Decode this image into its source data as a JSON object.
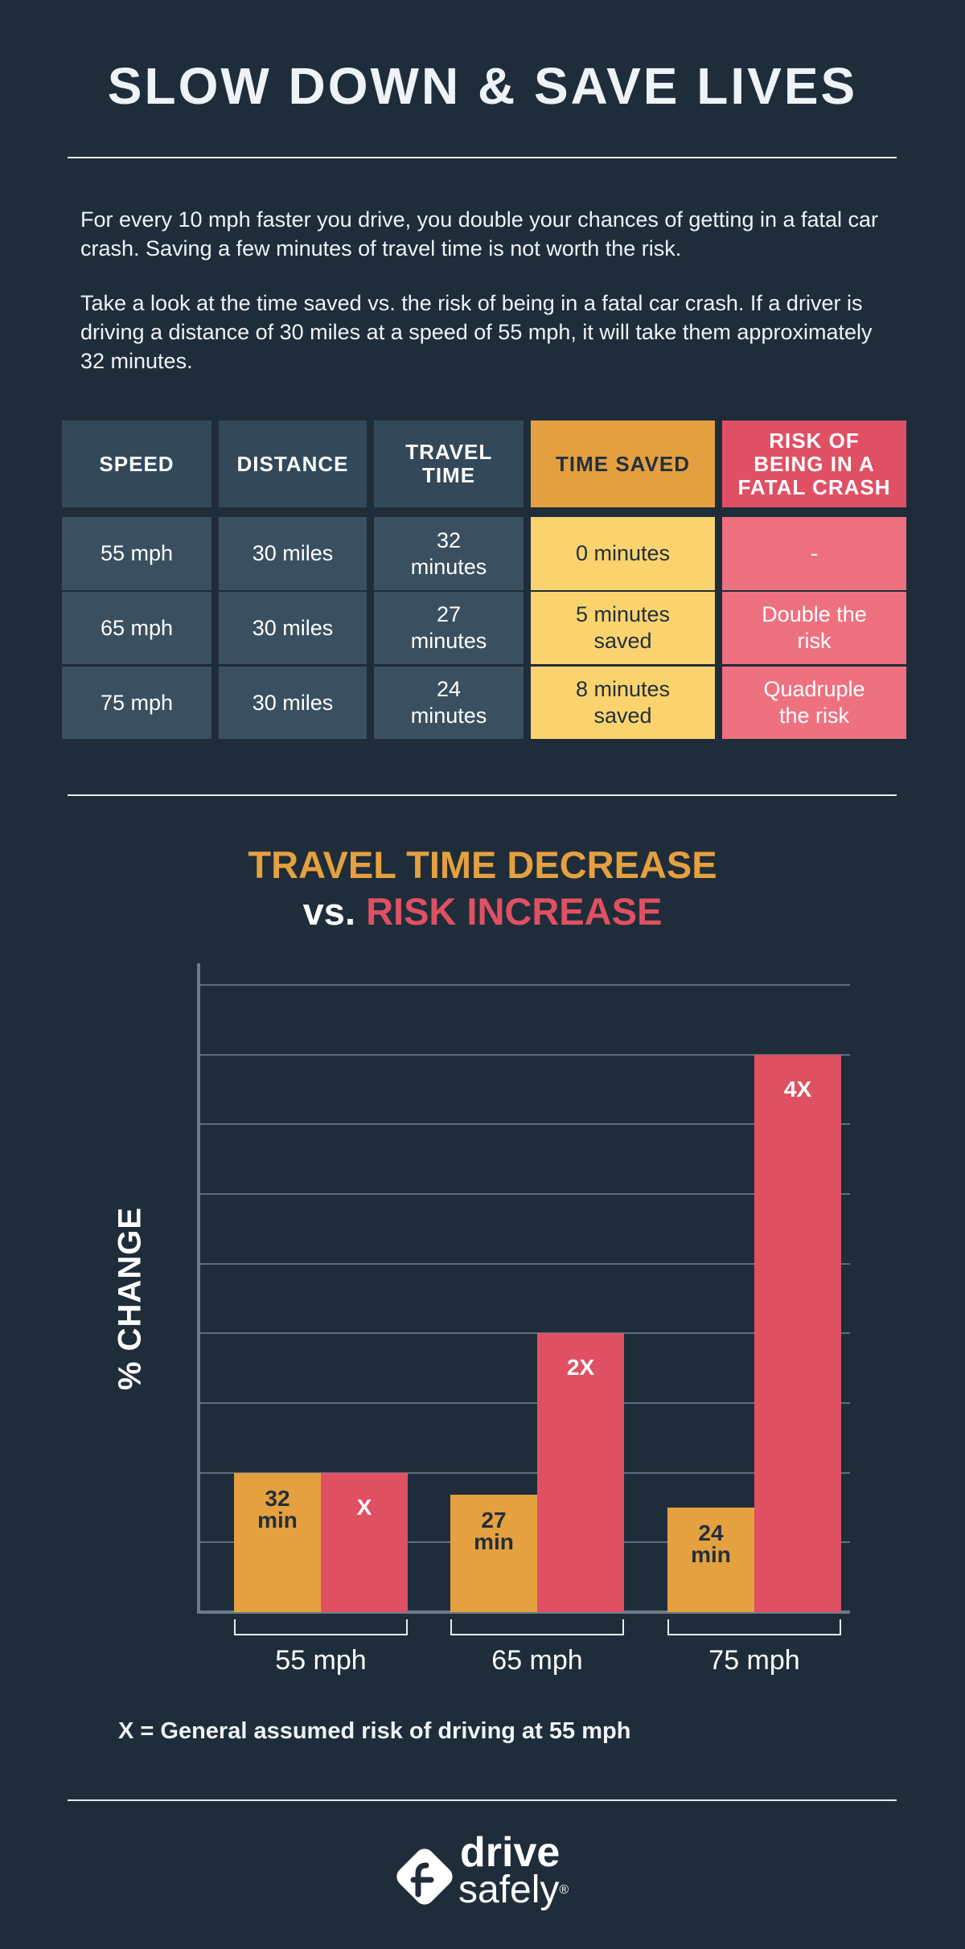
{
  "header": {
    "title": "SLOW DOWN & SAVE LIVES"
  },
  "intro": {
    "paragraphs": [
      "For every 10 mph faster you drive, you double your chances of getting in a fatal car crash. Saving a few minutes of travel time is not worth the risk.",
      "Take a look at the time saved vs. the risk of being in a fatal car crash. If a driver is driving a distance of 30 miles at a speed of 55 mph, it will take them approximately 32 minutes."
    ]
  },
  "table": {
    "columns": [
      "SPEED",
      "DISTANCE",
      "TRAVEL TIME",
      "TIME SAVED",
      "RISK OF BEING IN A FATAL CRASH"
    ],
    "rows": [
      [
        "55 mph",
        "30 miles",
        "32 minutes",
        "0 minutes",
        "-"
      ],
      [
        "65 mph",
        "30 miles",
        "27 minutes",
        "5 minutes saved",
        "Double the risk"
      ],
      [
        "75 mph",
        "30 miles",
        "24 minutes",
        "8 minutes saved",
        "Quadruple the risk"
      ]
    ]
  },
  "chart_data": {
    "type": "bar",
    "title": {
      "line1": "TRAVEL TIME DECREASE",
      "prefix": "vs.",
      "highlight": "RISK INCREASE"
    },
    "ylabel": "% CHANGE",
    "categories": [
      "55 mph",
      "65 mph",
      "75 mph"
    ],
    "series": [
      {
        "color": "#e5a040",
        "values": [
          32,
          27,
          24
        ],
        "value_labels": [
          "32 min",
          "27 min",
          "24 min"
        ]
      },
      {
        "color": "#e05063",
        "axis": "y2",
        "values": [
          1,
          2,
          4
        ],
        "value_labels": [
          "X",
          "2X",
          "4X"
        ]
      }
    ],
    "ylim": [
      0,
      149
    ],
    "y2lim": [
      0,
      4.65625
    ],
    "yticks": [
      16,
      32,
      48,
      64,
      80,
      96,
      112,
      128,
      144
    ],
    "grid": true,
    "footnote": "X = General assumed risk of driving at 55 mph"
  },
  "footer": {
    "logo": {
      "line1": "drive",
      "line2": "safely",
      "mark": "®"
    }
  }
}
